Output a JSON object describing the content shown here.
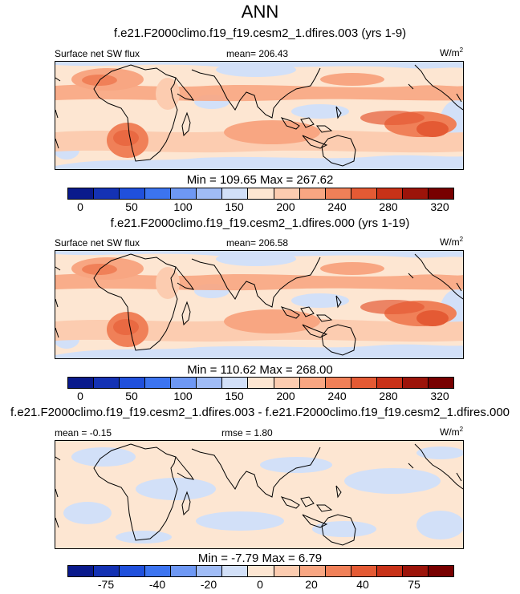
{
  "title": "ANN",
  "panels": [
    {
      "case": "f.e21.F2000climo.f19_f19.cesm2_1.dfires.003 (yrs 1-9)",
      "left": "Surface net SW flux",
      "center": "mean= 206.43",
      "units": "W/m",
      "units_sup": "2",
      "minmax": "Min = 109.65 Max = 267.62"
    },
    {
      "case": "f.e21.F2000climo.f19_f19.cesm2_1.dfires.000 (yrs 1-19)",
      "left": "Surface net SW flux",
      "center": "mean= 206.58",
      "units": "W/m",
      "units_sup": "2",
      "minmax": "Min = 110.62 Max = 268.00"
    },
    {
      "case": "f.e21.F2000climo.f19_f19.cesm2_1.dfires.003 - f.e21.F2000climo.f19_f19.cesm2_1.dfires.000",
      "left": "mean =  -0.15",
      "center": "rmse =  1.80",
      "units": "W/m",
      "units_sup": "2",
      "minmax": "Min =  -7.79 Max =   6.79"
    }
  ],
  "colorbar_colors": [
    "#0a1a8c",
    "#1432b4",
    "#2050dc",
    "#3c74f0",
    "#6e98f4",
    "#a0bcf6",
    "#d2e0f8",
    "#fde6d2",
    "#fcccb0",
    "#f8a682",
    "#f08058",
    "#e45a34",
    "#c83218",
    "#9c140a",
    "#780000"
  ],
  "colorbar_ticks_abs": [
    "0",
    "50",
    "100",
    "150",
    "200",
    "240",
    "280",
    "320"
  ],
  "colorbar_ticks_diff": [
    "-75",
    "-40",
    "-20",
    "0",
    "20",
    "40",
    "75"
  ],
  "chart_data": {
    "type": "heatmap",
    "title": "ANN",
    "variable": "Surface net SW flux",
    "units": "W/m2",
    "region": "tropics (approx. 40S-40N), global longitude",
    "panels": [
      {
        "name": "dfires.003 (yrs 1-9)",
        "mean": 206.43,
        "min": 109.65,
        "max": 267.62,
        "levels": [
          0,
          50,
          100,
          150,
          200,
          240,
          280,
          320
        ]
      },
      {
        "name": "dfires.000 (yrs 1-19)",
        "mean": 206.58,
        "min": 110.62,
        "max": 268.0,
        "levels": [
          0,
          50,
          100,
          150,
          200,
          240,
          280,
          320
        ]
      },
      {
        "name": "difference 003 - 000",
        "mean": -0.15,
        "rmse": 1.8,
        "min": -7.79,
        "max": 6.79,
        "levels": [
          -75,
          -40,
          -20,
          0,
          20,
          40,
          75
        ]
      }
    ]
  }
}
